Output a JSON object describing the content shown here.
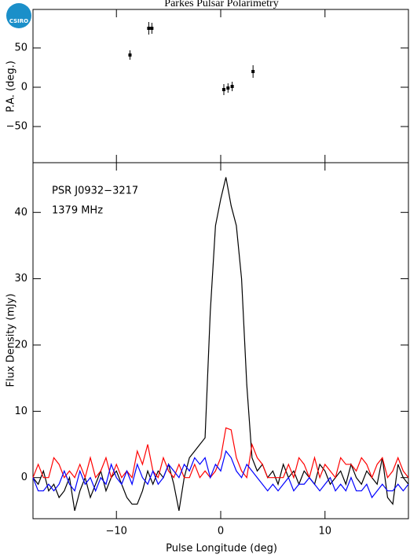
{
  "logo": "CSIRO",
  "chart_data": [
    {
      "type": "errorbar",
      "title": "Parkes Pulsar Polarimetry",
      "ylabel": "P.A. (deg.)",
      "x": [
        -8.7,
        -6.9,
        -6.6,
        0.3,
        0.7,
        1.1,
        3.1
      ],
      "values": [
        41,
        75,
        75,
        -3,
        -1,
        1,
        20
      ],
      "errors": [
        6,
        8,
        7,
        7,
        6,
        6,
        8
      ],
      "color": "#000000",
      "xlim": [
        -18,
        18
      ],
      "xticks": [
        -10,
        0,
        10
      ],
      "ylim": [
        -96,
        99
      ],
      "yticks": [
        {
          "value": -50,
          "label": "−50"
        },
        0,
        50
      ]
    },
    {
      "type": "line",
      "xlabel": "Pulse Longitude (deg)",
      "ylabel": "Flux Density (mJy)",
      "annotations": [
        "PSR J0932−3217",
        "1379 MHz"
      ],
      "x": [
        -18,
        -17.5,
        -17,
        -16.5,
        -16,
        -15.5,
        -15,
        -14.5,
        -14,
        -13.5,
        -13,
        -12.5,
        -12,
        -11.5,
        -11,
        -10.5,
        -10,
        -9.5,
        -9,
        -8.5,
        -8,
        -7.5,
        -7,
        -6.5,
        -6,
        -5.5,
        -5,
        -4.5,
        -4,
        -3.5,
        -3,
        -2.5,
        -2,
        -1.5,
        -1,
        -0.5,
        0,
        0.5,
        1,
        1.5,
        2,
        2.5,
        3,
        3.5,
        4,
        4.5,
        5,
        5.5,
        6,
        6.5,
        7,
        7.5,
        8,
        8.5,
        9,
        9.5,
        10,
        10.5,
        11,
        11.5,
        12,
        12.5,
        13,
        13.5,
        14,
        14.5,
        15,
        15.5,
        16,
        16.5,
        17,
        17.5,
        18
      ],
      "series": [
        {
          "color": "#000000",
          "values": [
            0,
            -1,
            1,
            -2,
            -1,
            -3,
            -2,
            0,
            -5,
            -2,
            0,
            -3,
            -1,
            1,
            -2,
            0,
            1,
            -1,
            -3,
            -4,
            -4,
            -2,
            1,
            -1,
            1,
            0,
            2,
            -1,
            -5,
            0,
            3,
            4,
            5,
            6,
            25,
            38,
            42,
            45.3,
            41,
            38,
            30,
            14,
            3,
            1,
            2,
            0,
            1,
            -1,
            2,
            0,
            1,
            -1,
            1,
            0,
            -1,
            2,
            1,
            -1,
            0,
            1,
            -1,
            2,
            0,
            -1,
            1,
            0,
            -1,
            3,
            -3,
            -4,
            2,
            0,
            -1
          ]
        },
        {
          "color": "#ff0000",
          "values": [
            0,
            2,
            0,
            0,
            3,
            2,
            0,
            1,
            0,
            2,
            0,
            3,
            0,
            1,
            3,
            0,
            2,
            0,
            1,
            0,
            4,
            2,
            5,
            1,
            0,
            3,
            1,
            0,
            2,
            0,
            0,
            2,
            0,
            1,
            0,
            1,
            3,
            7.5,
            7.2,
            3,
            1,
            0,
            5,
            3,
            2,
            0,
            0,
            0,
            0,
            2,
            0,
            3,
            2,
            0,
            3,
            0,
            2,
            1,
            0,
            3,
            2,
            2,
            1,
            3,
            2,
            0,
            2,
            3,
            0,
            1,
            3,
            1,
            0
          ]
        },
        {
          "color": "#0000ff",
          "values": [
            0,
            -2,
            -2,
            -1,
            -2,
            -1,
            1,
            -1,
            -2,
            1,
            -1,
            0,
            -2,
            0,
            -1,
            2,
            0,
            -1,
            1,
            -1,
            2,
            0,
            -1,
            1,
            -1,
            0,
            2,
            1,
            0,
            2,
            1,
            3,
            2,
            3,
            0,
            2,
            1,
            4,
            3,
            1,
            0,
            2,
            1,
            0,
            -1,
            -2,
            -1,
            -2,
            -1,
            0,
            -2,
            -1,
            -1,
            0,
            -1,
            -2,
            -1,
            0,
            -2,
            -1,
            -2,
            0,
            -2,
            -2,
            -1,
            -3,
            -2,
            -1,
            -2,
            -2,
            -1,
            -2,
            -1
          ]
        }
      ],
      "xlim": [
        -18,
        18
      ],
      "xticks": [
        {
          "value": -10,
          "label": "−10"
        },
        0,
        10
      ],
      "ylim": [
        -6.2,
        47.5
      ],
      "yticks": [
        0,
        10,
        20,
        30,
        40
      ]
    }
  ]
}
